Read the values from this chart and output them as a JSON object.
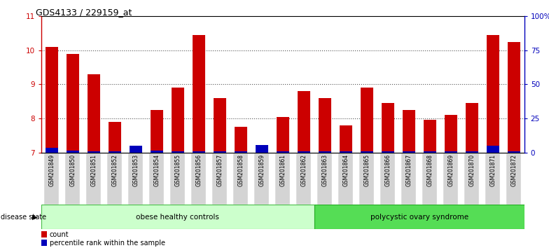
{
  "title": "GDS4133 / 229159_at",
  "samples": [
    "GSM201849",
    "GSM201850",
    "GSM201851",
    "GSM201852",
    "GSM201853",
    "GSM201854",
    "GSM201855",
    "GSM201856",
    "GSM201857",
    "GSM201858",
    "GSM201859",
    "GSM201861",
    "GSM201862",
    "GSM201863",
    "GSM201864",
    "GSM201865",
    "GSM201866",
    "GSM201867",
    "GSM201868",
    "GSM201869",
    "GSM201870",
    "GSM201871",
    "GSM201872"
  ],
  "count_values": [
    10.1,
    9.9,
    9.3,
    7.9,
    7.15,
    8.25,
    8.9,
    10.45,
    8.6,
    7.75,
    7.1,
    8.05,
    8.8,
    8.6,
    7.8,
    8.9,
    8.45,
    8.25,
    7.95,
    8.1,
    8.45,
    10.45,
    10.25
  ],
  "percentile_values": [
    3.5,
    1.5,
    1.0,
    1.0,
    5.0,
    1.5,
    1.0,
    1.0,
    1.0,
    1.0,
    5.5,
    1.0,
    1.0,
    1.0,
    1.0,
    1.0,
    1.0,
    1.0,
    1.0,
    1.0,
    1.0,
    5.0,
    1.0
  ],
  "group1_label": "obese healthy controls",
  "group2_label": "polycystic ovary syndrome",
  "group1_count": 13,
  "disease_state_label": "disease state",
  "ylim_left": [
    7,
    11
  ],
  "yticks_left": [
    7,
    8,
    9,
    10,
    11
  ],
  "yticks_right": [
    0,
    25,
    50,
    75,
    100
  ],
  "ytick_labels_right": [
    "0",
    "25",
    "50",
    "75",
    "100%"
  ],
  "bar_color_red": "#cc0000",
  "bar_color_blue": "#0000bb",
  "bar_width": 0.6,
  "group1_bg": "#ccffcc",
  "group2_bg": "#55dd55",
  "grid_color": "#555555",
  "axis_color_left": "#cc0000",
  "axis_color_right": "#0000bb",
  "legend_count_label": "count",
  "legend_percentile_label": "percentile rank within the sample",
  "col_bg": "#d4d4d4"
}
